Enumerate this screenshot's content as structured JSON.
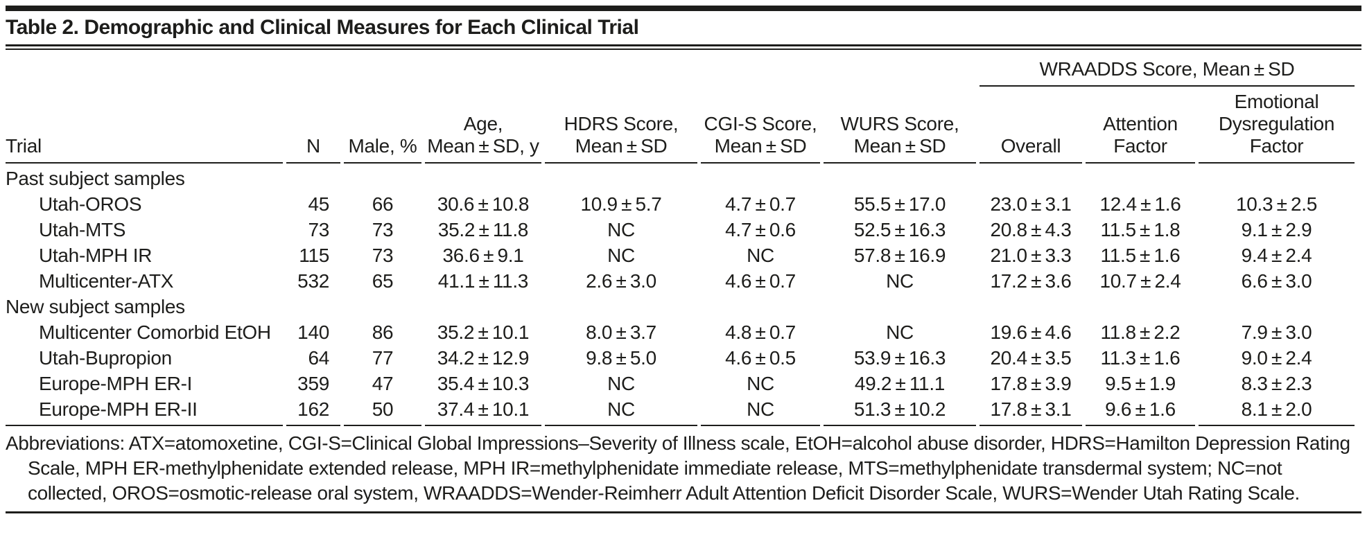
{
  "title": "Table 2. Demographic and Clinical Measures for Each Clinical Trial",
  "table": {
    "spanner_label": "WRAADDS Score, Mean±SD",
    "columns": [
      {
        "id": "trial",
        "label_lines": [
          "Trial"
        ],
        "align": "left"
      },
      {
        "id": "n",
        "label_lines": [
          "N"
        ],
        "align": "right"
      },
      {
        "id": "male-pct",
        "label_lines": [
          "Male, %"
        ],
        "align": "center"
      },
      {
        "id": "age",
        "label_lines": [
          "Age,",
          "Mean±SD, y"
        ],
        "align": "center"
      },
      {
        "id": "hdrs",
        "label_lines": [
          "HDRS Score,",
          "Mean±SD"
        ],
        "align": "center"
      },
      {
        "id": "cgis",
        "label_lines": [
          "CGI-S Score,",
          "Mean±SD"
        ],
        "align": "center"
      },
      {
        "id": "wurs",
        "label_lines": [
          "WURS Score,",
          "Mean±SD"
        ],
        "align": "center"
      },
      {
        "id": "overall",
        "label_lines": [
          "Overall"
        ],
        "align": "center"
      },
      {
        "id": "attention",
        "label_lines": [
          "Attention",
          "Factor"
        ],
        "align": "center"
      },
      {
        "id": "emotional",
        "label_lines": [
          "Emotional",
          "Dysregulation",
          "Factor"
        ],
        "align": "center"
      }
    ],
    "sections": [
      {
        "label": "Past subject samples",
        "rows": [
          {
            "trial": "Utah-OROS",
            "values": [
              "45",
              "66",
              "30.6±10.8",
              "10.9±5.7",
              "4.7±0.7",
              "55.5±17.0",
              "23.0±3.1",
              "12.4±1.6",
              "10.3±2.5"
            ]
          },
          {
            "trial": "Utah-MTS",
            "values": [
              "73",
              "73",
              "35.2±11.8",
              "NC",
              "4.7±0.6",
              "52.5±16.3",
              "20.8±4.3",
              "11.5±1.8",
              "9.1±2.9"
            ]
          },
          {
            "trial": "Utah-MPH IR",
            "values": [
              "115",
              "73",
              "36.6±9.1",
              "NC",
              "NC",
              "57.8±16.9",
              "21.0±3.3",
              "11.5±1.6",
              "9.4±2.4"
            ]
          },
          {
            "trial": "Multicenter-ATX",
            "values": [
              "532",
              "65",
              "41.1±11.3",
              "2.6±3.0",
              "4.6±0.7",
              "NC",
              "17.2±3.6",
              "10.7±2.4",
              "6.6±3.0"
            ]
          }
        ]
      },
      {
        "label": "New subject samples",
        "rows": [
          {
            "trial": "Multicenter Comorbid EtOH",
            "values": [
              "140",
              "86",
              "35.2±10.1",
              "8.0±3.7",
              "4.8±0.7",
              "NC",
              "19.6±4.6",
              "11.8±2.2",
              "7.9±3.0"
            ]
          },
          {
            "trial": "Utah-Bupropion",
            "values": [
              "64",
              "77",
              "34.2±12.9",
              "9.8±5.0",
              "4.6±0.5",
              "53.9±16.3",
              "20.4±3.5",
              "11.3±1.6",
              "9.0±2.4"
            ]
          },
          {
            "trial": "Europe-MPH ER-I",
            "values": [
              "359",
              "47",
              "35.4±10.3",
              "NC",
              "NC",
              "49.2±11.1",
              "17.8±3.9",
              "9.5±1.9",
              "8.3±2.3"
            ]
          },
          {
            "trial": "Europe-MPH ER-II",
            "values": [
              "162",
              "50",
              "37.4±10.1",
              "NC",
              "NC",
              "51.3±10.2",
              "17.8±3.1",
              "9.6±1.6",
              "8.1±2.0"
            ]
          }
        ]
      }
    ]
  },
  "footnote": "Abbreviations: ATX=atomoxetine, CGI-S=Clinical Global Impressions–Severity of Illness scale, EtOH=alcohol abuse disorder, HDRS=Hamilton Depression Rating Scale, MPH ER-methylphenidate extended release, MPH IR=methylphenidate immediate release, MTS=methylphenidate transdermal system; NC=not collected, OROS=osmotic-release oral system, WRAADDS=Wender-Reimherr Adult Attention Deficit Disorder Scale, WURS=Wender Utah Rating Scale."
}
